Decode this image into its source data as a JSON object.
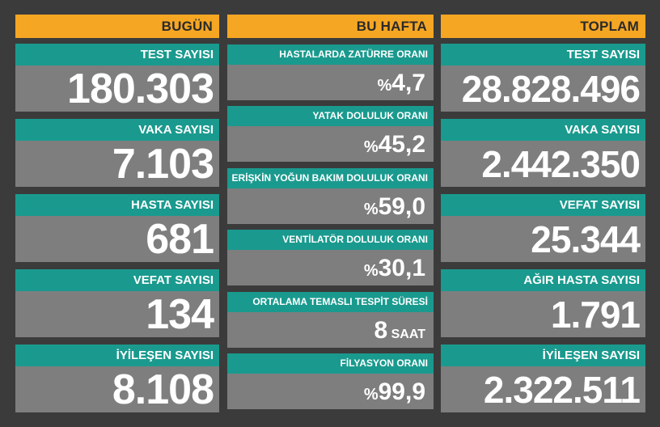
{
  "today": {
    "header": "BUGÜN",
    "items": [
      {
        "label": "TEST SAYISI",
        "value": "180.303"
      },
      {
        "label": "VAKA SAYISI",
        "value": "7.103"
      },
      {
        "label": "HASTA SAYISI",
        "value": "681"
      },
      {
        "label": "VEFAT SAYISI",
        "value": "134"
      },
      {
        "label": "İYİLEŞEN SAYISI",
        "value": "8.108"
      }
    ]
  },
  "week": {
    "header": "BU HAFTA",
    "items": [
      {
        "label": "HASTALARDA ZATÜRRE ORANI",
        "prefix": "%",
        "value": "4,7",
        "unit": ""
      },
      {
        "label": "YATAK DOLULUK ORANI",
        "prefix": "%",
        "value": "45,2",
        "unit": ""
      },
      {
        "label": "ERİŞKİN YOĞUN BAKIM DOLULUK ORANI",
        "prefix": "%",
        "value": "59,0",
        "unit": ""
      },
      {
        "label": "VENTİLATÖR DOLULUK ORANI",
        "prefix": "%",
        "value": "30,1",
        "unit": ""
      },
      {
        "label": "ORTALAMA TEMASLI TESPİT SÜRESİ",
        "prefix": "",
        "value": "8",
        "unit": " SAAT"
      },
      {
        "label": "FİLYASYON ORANI",
        "prefix": "%",
        "value": "99,9",
        "unit": ""
      }
    ]
  },
  "total": {
    "header": "TOPLAM",
    "items": [
      {
        "label": "TEST SAYISI",
        "value": "28.828.496"
      },
      {
        "label": "VAKA SAYISI",
        "value": "2.442.350"
      },
      {
        "label": "VEFAT SAYISI",
        "value": "25.344"
      },
      {
        "label": "AĞIR HASTA SAYISI",
        "value": "1.791"
      },
      {
        "label": "İYİLEŞEN SAYISI",
        "value": "2.322.511"
      }
    ]
  },
  "colors": {
    "header": "#f5a623",
    "label": "#1a9a8e",
    "value_bg": "#7e7e7e",
    "background": "#3b3b3b"
  }
}
